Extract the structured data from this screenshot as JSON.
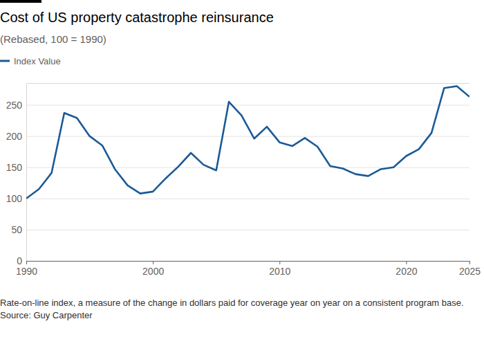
{
  "chart_data": {
    "type": "line",
    "title": "Cost of US property catastrophe reinsurance",
    "subtitle": "(Rebased, 100 = 1990)",
    "note": "Rate-on-line index, a measure of the change in dollars paid for coverage year on year on a consistent program base.",
    "source": "Source: Guy Carpenter",
    "x": [
      1990,
      1991,
      1992,
      1993,
      1994,
      1995,
      1996,
      1997,
      1998,
      1999,
      2000,
      2001,
      2002,
      2003,
      2004,
      2005,
      2006,
      2007,
      2008,
      2009,
      2010,
      2011,
      2012,
      2013,
      2014,
      2015,
      2016,
      2017,
      2018,
      2019,
      2020,
      2021,
      2022,
      2023,
      2024,
      2025
    ],
    "series": [
      {
        "name": "Index Value",
        "color": "#1a5a96",
        "values": [
          100,
          115,
          141,
          237,
          229,
          200,
          185,
          147,
          121,
          108,
          111,
          132,
          151,
          173,
          154,
          145,
          255,
          233,
          196,
          215,
          190,
          184,
          197,
          183,
          152,
          148,
          139,
          136,
          147,
          150,
          168,
          179,
          205,
          277,
          280,
          263
        ]
      }
    ],
    "xlim": [
      1990,
      2025
    ],
    "xticks": [
      1990,
      2000,
      2010,
      2020,
      2025
    ],
    "ylim": [
      0,
      285
    ],
    "yticks": [
      0,
      50,
      100,
      150,
      200,
      250
    ],
    "grid": true,
    "legend": "top-left"
  }
}
